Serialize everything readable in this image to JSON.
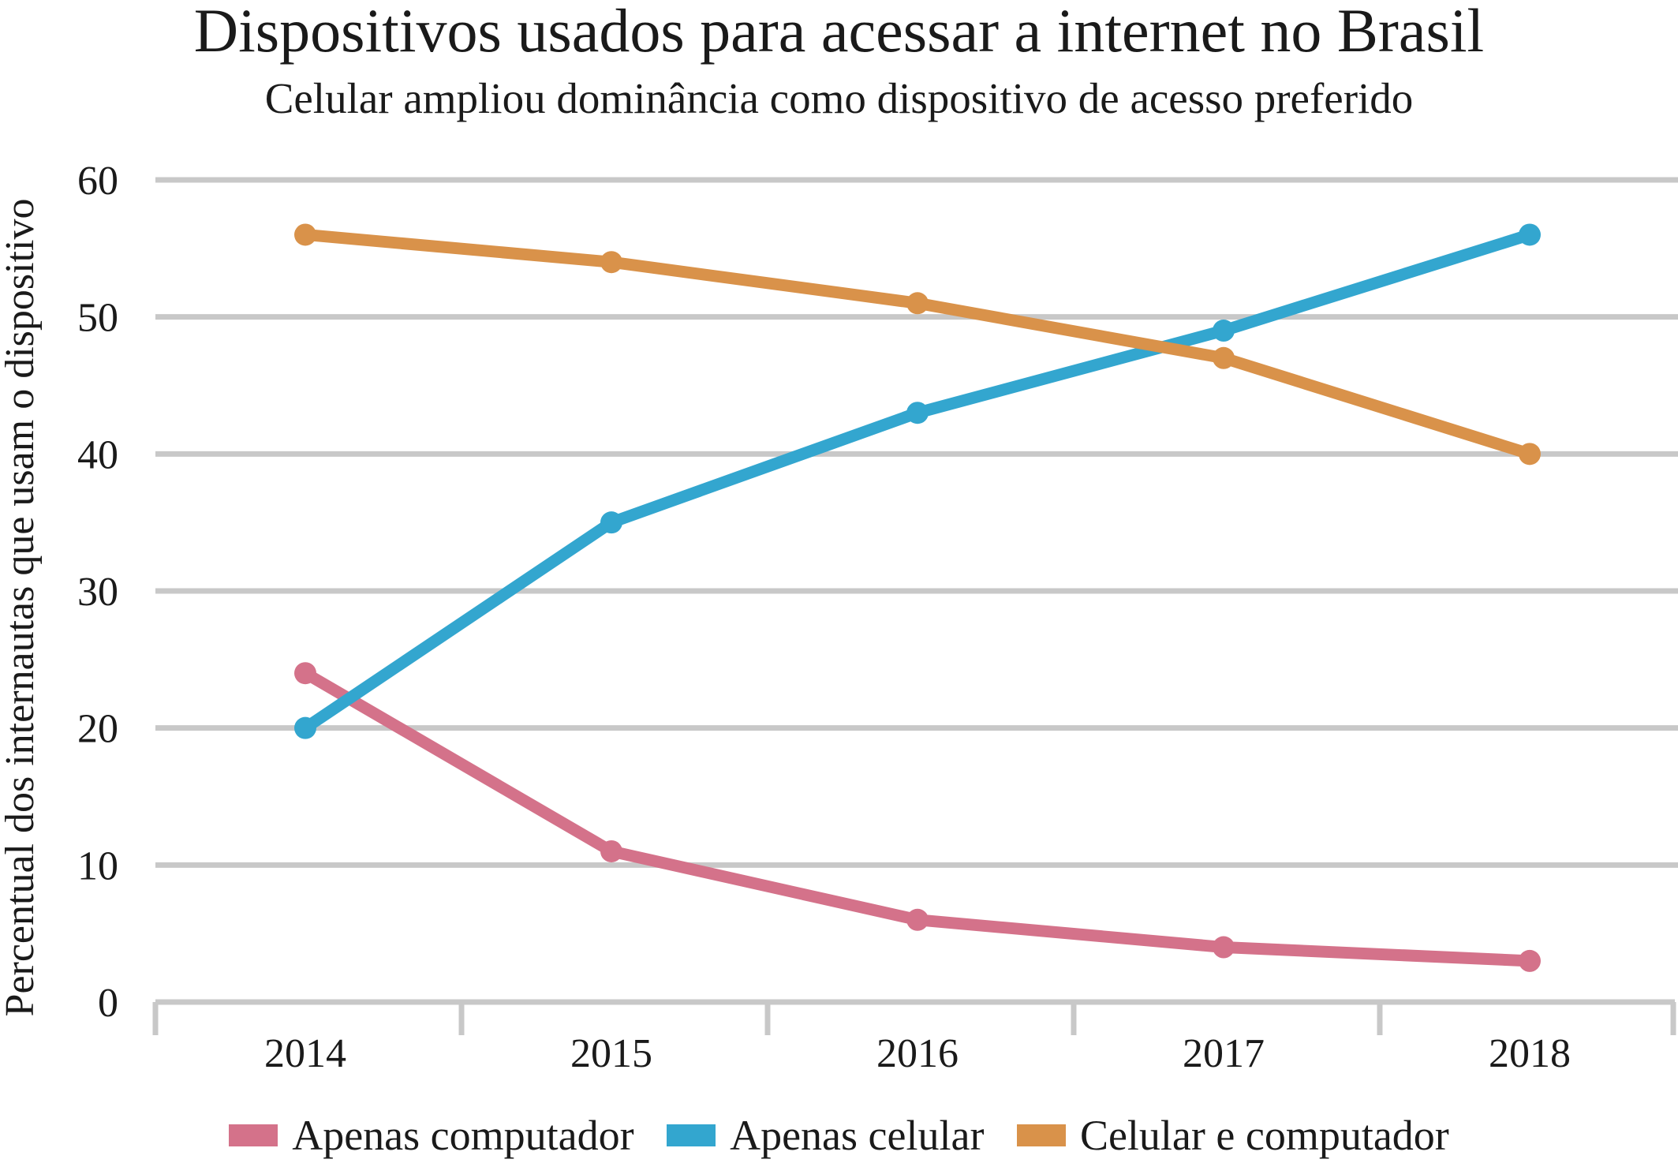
{
  "chart_data": {
    "type": "line",
    "title": "Dispositivos usados para acessar a internet no Brasil",
    "subtitle": "Celular ampliou dominância como dispositivo de acesso preferido",
    "ylabel": "Percentual dos internautas que usam o dispositivo",
    "xlabel": "",
    "categories": [
      "2014",
      "2015",
      "2016",
      "2017",
      "2018"
    ],
    "ylim": [
      0,
      60
    ],
    "yticks": [
      "0",
      "10",
      "20",
      "30",
      "40",
      "50",
      "60"
    ],
    "grid": true,
    "legend_position": "bottom",
    "series": [
      {
        "name": "Apenas computador",
        "color": "#d4728a",
        "values": [
          24,
          11,
          6,
          4,
          3
        ]
      },
      {
        "name": "Apenas celular",
        "color": "#33a6cf",
        "values": [
          20,
          35,
          43,
          49,
          56
        ]
      },
      {
        "name": "Celular e computador",
        "color": "#d9924a",
        "values": [
          56,
          54,
          51,
          47,
          40
        ]
      }
    ]
  }
}
